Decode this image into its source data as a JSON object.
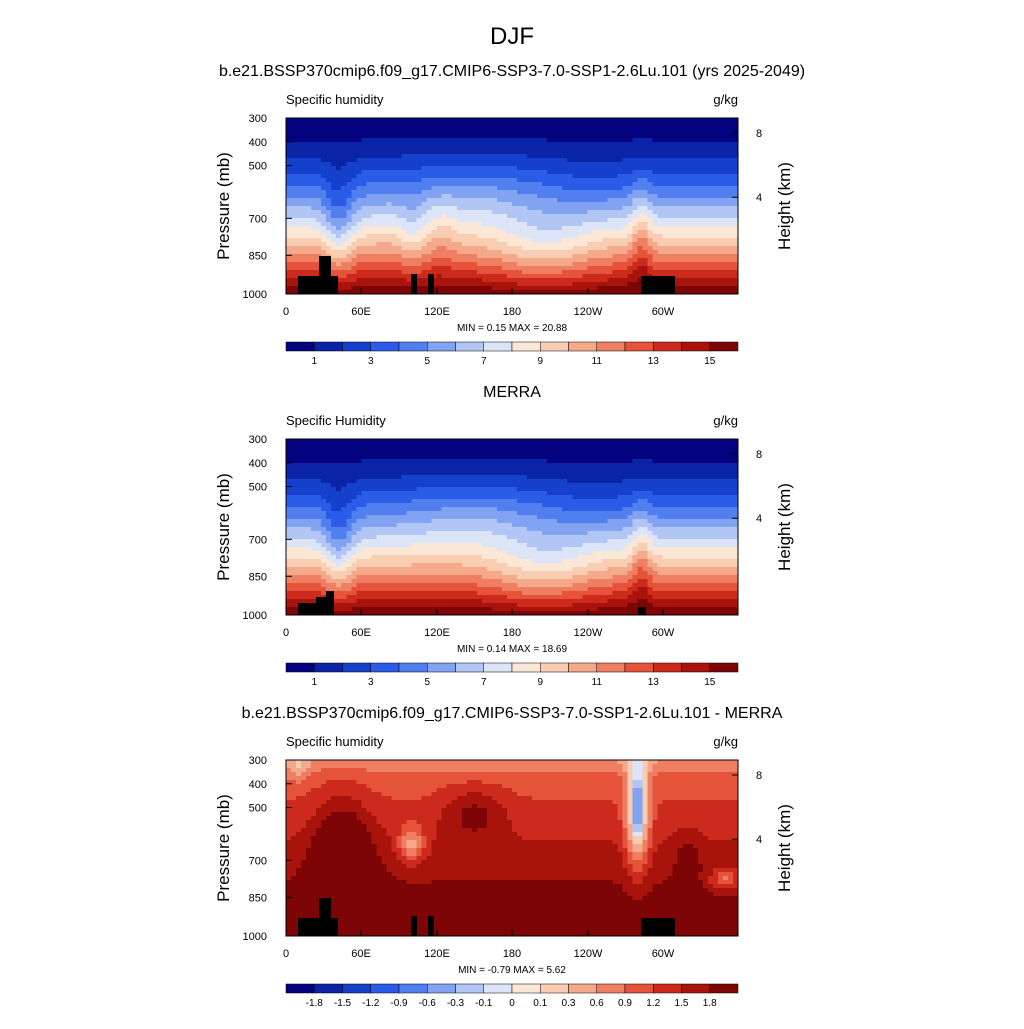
{
  "page": {
    "title": "DJF"
  },
  "chart_data": [
    {
      "type": "heatmap",
      "title": "b.e21.BSSP370cmip6.f09_g17.CMIP6-SSP3-7.0-SSP1-2.6Lu.101 (yrs 2025-2049)",
      "left_label": "Specific humidity",
      "right_label": "g/kg",
      "ylabel": "Pressure (mb)",
      "ylabel_right": "Height (km)",
      "x_ticks": [
        "0",
        "60E",
        "120E",
        "180",
        "120W",
        "60W"
      ],
      "y_ticks": [
        "300",
        "400",
        "500",
        "700",
        "850",
        "1000"
      ],
      "y_ticks_right": [
        "8",
        "4"
      ],
      "ylim": [
        1000,
        300
      ],
      "stats": "MIN =   0.15  MAX =  20.88",
      "colorbar_labels": [
        "1",
        "3",
        "5",
        "7",
        "9",
        "11",
        "13",
        "15"
      ],
      "colorbar_colors": [
        "#03037f",
        "#0b23a6",
        "#1540cc",
        "#2a5ce8",
        "#527ff0",
        "#82a3f2",
        "#b1c6f4",
        "#dbe5f7",
        "#fbe7d6",
        "#f8cdb2",
        "#f4a98b",
        "#ee7f62",
        "#e5533b",
        "#cc2a1c",
        "#a8140c",
        "#7e0505"
      ],
      "min_value": 0.15,
      "max_value": 20.88,
      "field_kind": "humidity",
      "model_variant": 0
    },
    {
      "type": "heatmap",
      "title": "MERRA",
      "left_label": "Specific Humidity",
      "right_label": "g/kg",
      "ylabel": "Pressure (mb)",
      "ylabel_right": "Height (km)",
      "x_ticks": [
        "0",
        "60E",
        "120E",
        "180",
        "120W",
        "60W"
      ],
      "y_ticks": [
        "300",
        "400",
        "500",
        "700",
        "850",
        "1000"
      ],
      "y_ticks_right": [
        "8",
        "4"
      ],
      "ylim": [
        1000,
        300
      ],
      "stats": "MIN =   0.14  MAX =  18.69",
      "colorbar_labels": [
        "1",
        "3",
        "5",
        "7",
        "9",
        "11",
        "13",
        "15"
      ],
      "colorbar_colors": [
        "#03037f",
        "#0b23a6",
        "#1540cc",
        "#2a5ce8",
        "#527ff0",
        "#82a3f2",
        "#b1c6f4",
        "#dbe5f7",
        "#fbe7d6",
        "#f8cdb2",
        "#f4a98b",
        "#ee7f62",
        "#e5533b",
        "#cc2a1c",
        "#a8140c",
        "#7e0505"
      ],
      "min_value": 0.14,
      "max_value": 18.69,
      "field_kind": "humidity",
      "model_variant": 1
    },
    {
      "type": "heatmap",
      "title": "b.e21.BSSP370cmip6.f09_g17.CMIP6-SSP3-7.0-SSP1-2.6Lu.101 - MERRA",
      "left_label": "Specific humidity",
      "right_label": "g/kg",
      "ylabel": "Pressure (mb)",
      "ylabel_right": "Height (km)",
      "x_ticks": [
        "0",
        "60E",
        "120E",
        "180",
        "120W",
        "60W"
      ],
      "y_ticks": [
        "300",
        "400",
        "500",
        "700",
        "850",
        "1000"
      ],
      "y_ticks_right": [
        "8",
        "4"
      ],
      "ylim": [
        1000,
        300
      ],
      "stats": "MIN =  -0.79  MAX =   5.62",
      "colorbar_labels": [
        "-1.8",
        "-1.5",
        "-1.2",
        "-0.9",
        "-0.6",
        "-0.3",
        "-0.1",
        "0",
        "0.1",
        "0.3",
        "0.6",
        "0.9",
        "1.2",
        "1.5",
        "1.8"
      ],
      "colorbar_colors": [
        "#03037f",
        "#0b23a6",
        "#1540cc",
        "#2a5ce8",
        "#527ff0",
        "#82a3f2",
        "#b1c6f4",
        "#dbe5f7",
        "#fbe7d6",
        "#f8cdb2",
        "#f4a98b",
        "#ee7f62",
        "#e5533b",
        "#cc2a1c",
        "#a8140c",
        "#7e0505"
      ],
      "min_value": -0.79,
      "max_value": 5.62,
      "field_kind": "difference",
      "model_variant": 2
    }
  ]
}
